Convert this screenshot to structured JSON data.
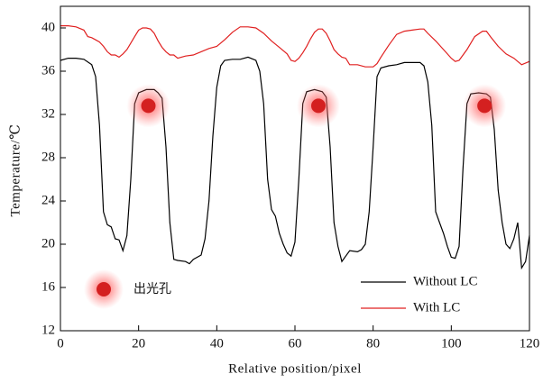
{
  "chart_data": {
    "type": "line",
    "xlabel": "Relative position/pixel",
    "ylabel": "Temperature/℃",
    "xlim": [
      0,
      120
    ],
    "ylim": [
      12,
      42
    ],
    "xticks": [
      0,
      20,
      40,
      60,
      80,
      100,
      120
    ],
    "yticks": [
      12,
      16,
      20,
      24,
      28,
      32,
      36,
      40
    ],
    "legend": "lower right",
    "series": [
      {
        "name": "Without LC",
        "color": "#000000",
        "x": [
          0,
          2,
          4,
          6,
          8,
          9,
          10,
          11,
          12,
          13,
          14,
          15,
          16,
          17,
          18,
          19,
          20,
          22,
          24,
          25,
          26,
          27,
          28,
          29,
          30,
          32,
          33,
          34,
          36,
          37,
          38,
          39,
          40,
          41,
          42,
          44,
          46,
          48,
          50,
          51,
          52,
          53,
          54,
          55,
          56,
          57,
          58,
          59,
          60,
          61,
          62,
          63,
          65,
          67,
          68,
          69,
          70,
          71,
          72,
          73,
          74,
          76,
          77,
          78,
          79,
          80,
          81,
          82,
          84,
          86,
          88,
          90,
          92,
          93,
          94,
          95,
          96,
          97,
          98,
          99,
          100,
          101,
          102,
          103,
          104,
          105,
          107,
          109,
          110,
          111,
          112,
          113,
          114,
          115,
          116,
          117,
          118,
          119,
          120
        ],
        "values": [
          37.0,
          37.2,
          37.2,
          37.1,
          36.6,
          35.5,
          31,
          23,
          21.8,
          21.6,
          20.5,
          20.4,
          19.4,
          20.8,
          26,
          33,
          34,
          34.3,
          34.3,
          34,
          33.5,
          29,
          22,
          18.6,
          18.5,
          18.4,
          18.2,
          18.6,
          19.0,
          20.5,
          24,
          30,
          34.5,
          36.5,
          37.0,
          37.1,
          37.1,
          37.3,
          37.0,
          36.0,
          33,
          26,
          23.2,
          22.6,
          21.0,
          20.0,
          19.2,
          18.9,
          20.2,
          26,
          33,
          34.1,
          34.3,
          34.1,
          33.6,
          29,
          22,
          19.8,
          18.4,
          18.9,
          19.4,
          19.3,
          19.5,
          20.0,
          23,
          29,
          35.5,
          36.3,
          36.5,
          36.6,
          36.8,
          36.8,
          36.8,
          36.5,
          35,
          31,
          23,
          22,
          21,
          19.8,
          18.8,
          18.7,
          19.8,
          27,
          33,
          33.9,
          34.0,
          33.9,
          33.6,
          30.6,
          25,
          22,
          20.0,
          19.6,
          20.5,
          22,
          17.8,
          18.4,
          20.8
        ]
      },
      {
        "name": "With LC",
        "color": "#e02020",
        "x": [
          0,
          2,
          4,
          6,
          7,
          8,
          9,
          10,
          11,
          12,
          13,
          14,
          15,
          16,
          17,
          18,
          19,
          20,
          21,
          22,
          23,
          24,
          25,
          26,
          27,
          28,
          29,
          30,
          32,
          34,
          36,
          38,
          40,
          42,
          44,
          46,
          48,
          50,
          52,
          54,
          56,
          58,
          59,
          60,
          61,
          62,
          63,
          64,
          65,
          66,
          67,
          68,
          69,
          70,
          71,
          72,
          73,
          74,
          76,
          78,
          80,
          81,
          82,
          84,
          86,
          88,
          90,
          92,
          93,
          94,
          96,
          98,
          100,
          101,
          102,
          104,
          106,
          108,
          109,
          110,
          112,
          114,
          116,
          118,
          120
        ],
        "values": [
          40.2,
          40.2,
          40.1,
          39.8,
          39.2,
          39.1,
          38.9,
          38.7,
          38.3,
          37.8,
          37.5,
          37.5,
          37.3,
          37.6,
          38.0,
          38.6,
          39.2,
          39.8,
          40.0,
          40.0,
          39.9,
          39.5,
          38.8,
          38.2,
          37.8,
          37.5,
          37.5,
          37.2,
          37.4,
          37.5,
          37.8,
          38.1,
          38.3,
          38.9,
          39.6,
          40.1,
          40.1,
          40.0,
          39.5,
          38.8,
          38.2,
          37.6,
          37.0,
          36.9,
          37.2,
          37.7,
          38.3,
          39.0,
          39.6,
          39.9,
          39.9,
          39.5,
          38.8,
          38.0,
          37.6,
          37.3,
          37.2,
          36.6,
          36.6,
          36.4,
          36.4,
          36.7,
          37.3,
          38.4,
          39.4,
          39.7,
          39.8,
          39.9,
          39.9,
          39.5,
          38.8,
          38.0,
          37.2,
          36.9,
          37.0,
          38.0,
          39.2,
          39.7,
          39.7,
          39.2,
          38.3,
          37.6,
          37.2,
          36.6,
          36.9
        ]
      }
    ],
    "spots": {
      "name": "出光孔",
      "color": "#d42020",
      "x": [
        22.5,
        66,
        108.5
      ],
      "y": [
        32.8,
        32.8,
        32.8
      ]
    }
  }
}
